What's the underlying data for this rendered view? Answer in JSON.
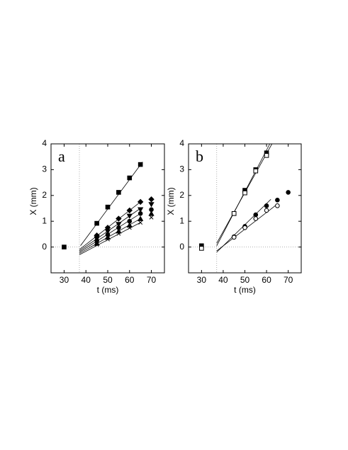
{
  "chart_data": [
    {
      "type": "scatter",
      "panel_label": "a",
      "xlabel": "t (ms)",
      "ylabel": "X (mm)",
      "xlim": [
        24,
        76
      ],
      "ylim": [
        -1,
        4
      ],
      "xticks": [
        30,
        40,
        50,
        60,
        70
      ],
      "yticks": [
        0,
        1,
        2,
        3,
        4
      ],
      "reference_x": 37,
      "reference_y": 0,
      "color": "#000000",
      "series": [
        {
          "marker": "square",
          "filled": true,
          "x": [
            30,
            45,
            50,
            55,
            60,
            65
          ],
          "values": [
            0,
            0.92,
            1.55,
            2.12,
            2.68,
            3.2
          ]
        },
        {
          "marker": "diamond",
          "filled": true,
          "x": [
            45,
            50,
            55,
            60,
            65,
            70
          ],
          "values": [
            0.45,
            0.75,
            1.1,
            1.42,
            1.75,
            1.85
          ]
        },
        {
          "marker": "triangle-down",
          "filled": true,
          "x": [
            45,
            50,
            55,
            60,
            65,
            70
          ],
          "values": [
            0.32,
            0.6,
            0.88,
            1.2,
            1.45,
            1.65
          ]
        },
        {
          "marker": "circle",
          "filled": true,
          "x": [
            45,
            50,
            55,
            60,
            65,
            70
          ],
          "values": [
            0.25,
            0.48,
            0.75,
            1.0,
            1.3,
            1.45
          ]
        },
        {
          "marker": "triangle-up",
          "filled": true,
          "x": [
            45,
            50,
            55,
            60,
            65,
            70
          ],
          "values": [
            0.15,
            0.38,
            0.62,
            0.85,
            1.1,
            1.3
          ]
        },
        {
          "marker": "cross",
          "filled": true,
          "x": [
            45,
            50,
            55,
            60,
            65,
            70
          ],
          "values": [
            0.1,
            0.3,
            0.52,
            0.75,
            0.95,
            1.15
          ]
        }
      ],
      "fits": [
        {
          "x": [
            37.5,
            66
          ],
          "values": [
            0.05,
            3.3
          ]
        },
        {
          "x": [
            37,
            65
          ],
          "values": [
            -0.1,
            1.75
          ]
        },
        {
          "x": [
            37,
            65
          ],
          "values": [
            -0.15,
            1.5
          ]
        },
        {
          "x": [
            37,
            65
          ],
          "values": [
            -0.2,
            1.3
          ]
        },
        {
          "x": [
            37,
            65
          ],
          "values": [
            -0.25,
            1.1
          ]
        },
        {
          "x": [
            37,
            65
          ],
          "values": [
            -0.3,
            0.95
          ]
        }
      ]
    },
    {
      "type": "scatter",
      "panel_label": "b",
      "xlabel": "t (ms)",
      "ylabel": "X (mm)",
      "xlim": [
        24,
        76
      ],
      "ylim": [
        -1,
        4
      ],
      "xticks": [
        30,
        40,
        50,
        60,
        70
      ],
      "yticks": [
        0,
        1,
        2,
        3,
        4
      ],
      "reference_x": 37,
      "reference_y": 0,
      "color": "#000000",
      "series": [
        {
          "marker": "square",
          "filled": true,
          "x": [
            30,
            45,
            50,
            55,
            60
          ],
          "values": [
            0.05,
            1.3,
            2.2,
            3.0,
            3.65
          ]
        },
        {
          "marker": "square",
          "filled": false,
          "x": [
            30,
            45,
            50,
            55,
            60
          ],
          "values": [
            -0.05,
            1.3,
            2.1,
            2.95,
            3.55
          ]
        },
        {
          "marker": "circle",
          "filled": true,
          "x": [
            45,
            50,
            55,
            60,
            65,
            70
          ],
          "values": [
            0.4,
            0.8,
            1.25,
            1.6,
            1.82,
            2.12
          ]
        },
        {
          "marker": "circle",
          "filled": false,
          "x": [
            45,
            50,
            55,
            60,
            65
          ],
          "values": [
            0.38,
            0.75,
            1.1,
            1.42,
            1.6
          ]
        }
      ],
      "fits": [
        {
          "x": [
            37,
            61.5
          ],
          "values": [
            0.05,
            4
          ]
        },
        {
          "x": [
            37,
            62.5
          ],
          "values": [
            0.15,
            4
          ]
        },
        {
          "x": [
            37,
            62
          ],
          "values": [
            -0.2,
            1.85
          ]
        },
        {
          "x": [
            37,
            64
          ],
          "values": [
            -0.15,
            1.6
          ]
        }
      ]
    }
  ]
}
